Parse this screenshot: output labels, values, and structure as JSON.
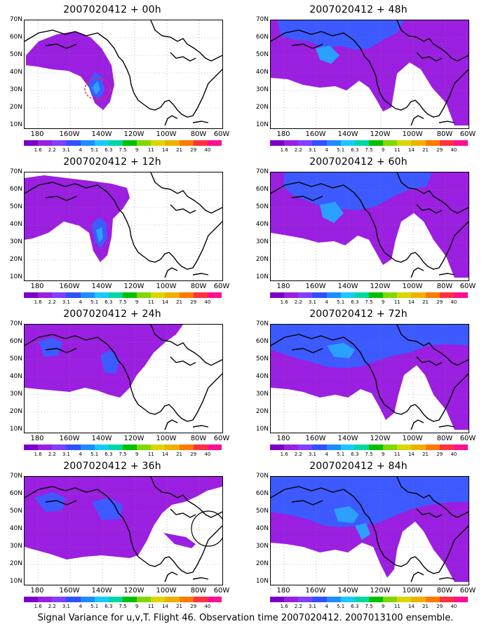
{
  "panels": [
    {
      "title": "2007020412 + 00h"
    },
    {
      "title": "2007020412 + 48h"
    },
    {
      "title": "2007020412 + 12h"
    },
    {
      "title": "2007020412 + 60h"
    },
    {
      "title": "2007020412 + 24h"
    },
    {
      "title": "2007020412 + 72h"
    },
    {
      "title": "2007020412 + 36h"
    },
    {
      "title": "2007020412 + 84h"
    }
  ],
  "lat_labels": [
    "70N",
    "60N",
    "50N",
    "40N",
    "30N",
    "20N",
    "10N"
  ],
  "lon_labels": [
    "180",
    "160W",
    "140W",
    "120W",
    "100W",
    "80W",
    "60W"
  ],
  "colorbar": {
    "colors": [
      "#7a00c8",
      "#9b1fe0",
      "#8040ff",
      "#3050ff",
      "#1e8cff",
      "#19c8ff",
      "#00d8a0",
      "#00c000",
      "#80d800",
      "#d8d800",
      "#f0b000",
      "#ff7800",
      "#ff3040",
      "#ff1090"
    ],
    "labels": [
      "1.6",
      "2.2",
      "3.1",
      "4",
      "5.1",
      "6.3",
      "7.5",
      "9",
      "11",
      "14",
      "21",
      "29",
      "40"
    ]
  },
  "footer": "Signal Variance for u,v,T. Flight 46. Observation time 2007020412. 2007013100 ensemble.",
  "colors": {
    "low": "#9b1fe0",
    "mid": "#7a3cff",
    "high": "#3c5aff",
    "peak": "#2aa0ff"
  }
}
